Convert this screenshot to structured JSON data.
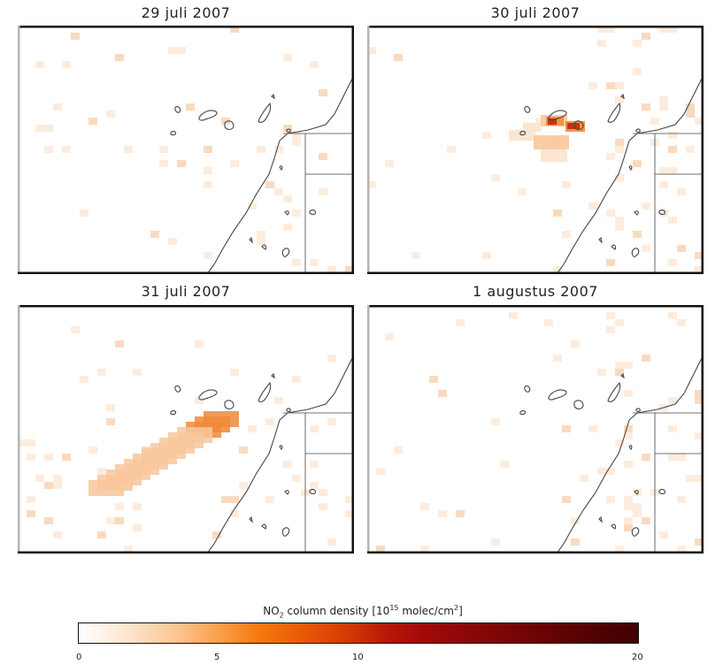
{
  "panels": [
    {
      "title": "29 juli 2007",
      "plume": "none"
    },
    {
      "title": "30 juli 2007",
      "plume": "hotspot"
    },
    {
      "title": "31 juli 2007",
      "plume": "diagonal"
    },
    {
      "title": "1 augustus 2007",
      "plume": "faint"
    }
  ],
  "colorbar": {
    "title_prefix": "NO",
    "title_sub": "2",
    "title_mid": " column density [10",
    "title_sup": "15",
    "title_end": " molec/cm",
    "title_sup2": "2",
    "title_close": "]",
    "ticks": [
      "0",
      "5",
      "10",
      "20"
    ],
    "range": [
      0,
      20
    ],
    "colors": [
      "#ffffff",
      "#fbc38f",
      "#f57a0f",
      "#d33a05",
      "#a00a08",
      "#3f0101"
    ]
  },
  "map_colors": {
    "frame_dark": "#111111",
    "frame_light": "#b5b5b5",
    "coast": "#444444",
    "low": "#fce3cc",
    "mid": "#f8c79c",
    "high": "#ef8a3c",
    "peak": "#c0280c"
  }
}
